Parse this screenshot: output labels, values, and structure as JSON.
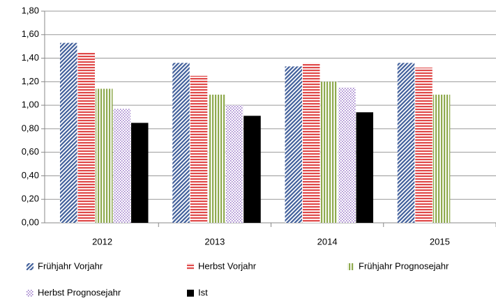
{
  "chart_data": {
    "type": "bar",
    "categories": [
      "2012",
      "2013",
      "2014",
      "2015"
    ],
    "series": [
      {
        "name": "Frühjahr Vorjahr",
        "color": "#3f5e9a",
        "values": [
          1.53,
          1.36,
          1.33,
          1.36
        ]
      },
      {
        "name": "Herbst Vorjahr",
        "color": "#e04848",
        "values": [
          1.45,
          1.25,
          1.36,
          1.32
        ]
      },
      {
        "name": "Frühjahr Prognosejahr",
        "color": "#8faa4e",
        "values": [
          1.14,
          1.09,
          1.2,
          1.09
        ]
      },
      {
        "name": "Herbst Prognosejahr",
        "color": "#a98bd0",
        "values": [
          0.97,
          1.0,
          1.15,
          null
        ]
      },
      {
        "name": "Ist",
        "color": "#000000",
        "values": [
          0.85,
          0.91,
          0.94,
          null
        ]
      }
    ],
    "ylim": [
      0,
      1.8
    ],
    "yticks": [
      {
        "value": 0,
        "label": "0,00"
      },
      {
        "value": 0.2,
        "label": "0,20"
      },
      {
        "value": 0.4,
        "label": "0,40"
      },
      {
        "value": 0.6,
        "label": "0,60"
      },
      {
        "value": 0.8,
        "label": "0,80"
      },
      {
        "value": 1,
        "label": "1,00"
      },
      {
        "value": 1.2,
        "label": "1,20"
      },
      {
        "value": 1.4,
        "label": "1,40"
      },
      {
        "value": 1.6,
        "label": "1,60"
      },
      {
        "value": 1.8,
        "label": "1,80"
      }
    ],
    "grid": true
  }
}
